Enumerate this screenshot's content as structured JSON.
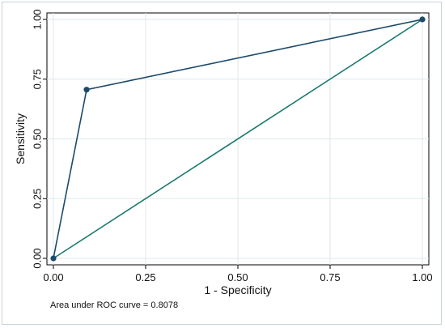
{
  "chart_data": {
    "type": "line",
    "xlabel": "1 - Specificity",
    "ylabel": "Sensitivity",
    "xlim": [
      0,
      1
    ],
    "ylim": [
      0,
      1
    ],
    "xticks": [
      "0.00",
      "0.25",
      "0.50",
      "0.75",
      "1.00"
    ],
    "yticks": [
      "0.00",
      "0.25",
      "0.50",
      "0.75",
      "1.00"
    ],
    "grid": true,
    "series": [
      {
        "role": "roc-curve",
        "x": [
          0,
          0.09,
          1
        ],
        "y": [
          0,
          0.706,
          1
        ],
        "color": "#1c4a6b",
        "markers": true
      },
      {
        "role": "reference-line",
        "x": [
          0,
          1
        ],
        "y": [
          0,
          1
        ],
        "color": "#1b7a6e",
        "markers": false
      }
    ],
    "annotation": "Area under ROC curve = 0.8078"
  }
}
